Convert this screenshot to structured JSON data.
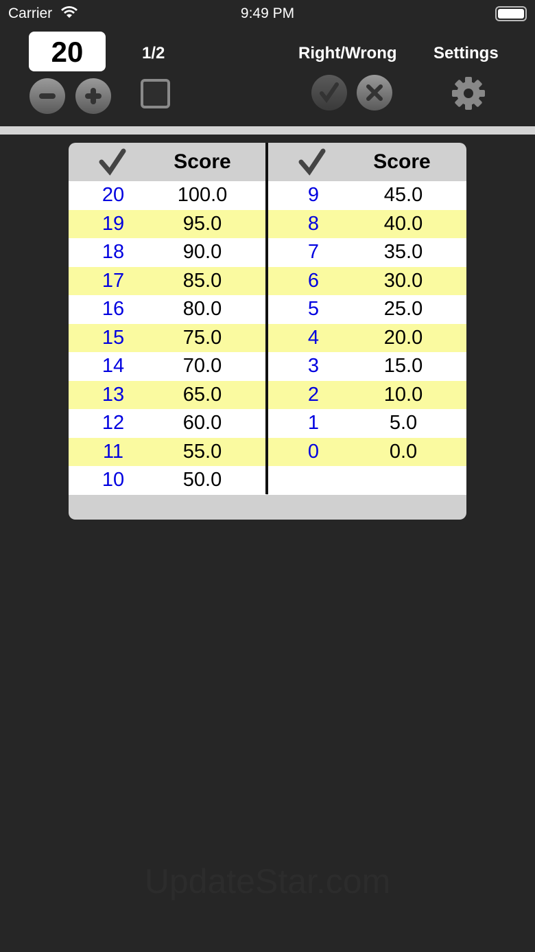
{
  "status": {
    "carrier": "Carrier",
    "time": "9:49 PM"
  },
  "toolbar": {
    "count": "20",
    "fraction": "1/2",
    "right_wrong_label": "Right/Wrong",
    "settings_label": "Settings"
  },
  "table": {
    "left": {
      "header_score": "Score",
      "rows": [
        [
          "20",
          "100.0"
        ],
        [
          "19",
          "95.0"
        ],
        [
          "18",
          "90.0"
        ],
        [
          "17",
          "85.0"
        ],
        [
          "16",
          "80.0"
        ],
        [
          "15",
          "75.0"
        ],
        [
          "14",
          "70.0"
        ],
        [
          "13",
          "65.0"
        ],
        [
          "12",
          "60.0"
        ],
        [
          "11",
          "55.0"
        ],
        [
          "10",
          "50.0"
        ]
      ]
    },
    "right": {
      "header_score": "Score",
      "rows": [
        [
          "9",
          "45.0"
        ],
        [
          "8",
          "40.0"
        ],
        [
          "7",
          "35.0"
        ],
        [
          "6",
          "30.0"
        ],
        [
          "5",
          "25.0"
        ],
        [
          "4",
          "20.0"
        ],
        [
          "3",
          "15.0"
        ],
        [
          "2",
          "10.0"
        ],
        [
          "1",
          "5.0"
        ],
        [
          "0",
          "0.0"
        ]
      ]
    }
  },
  "colors": {
    "row_alt": "#fafaa0",
    "correct_count": "#0000e0"
  },
  "watermark": "UpdateStar.com"
}
